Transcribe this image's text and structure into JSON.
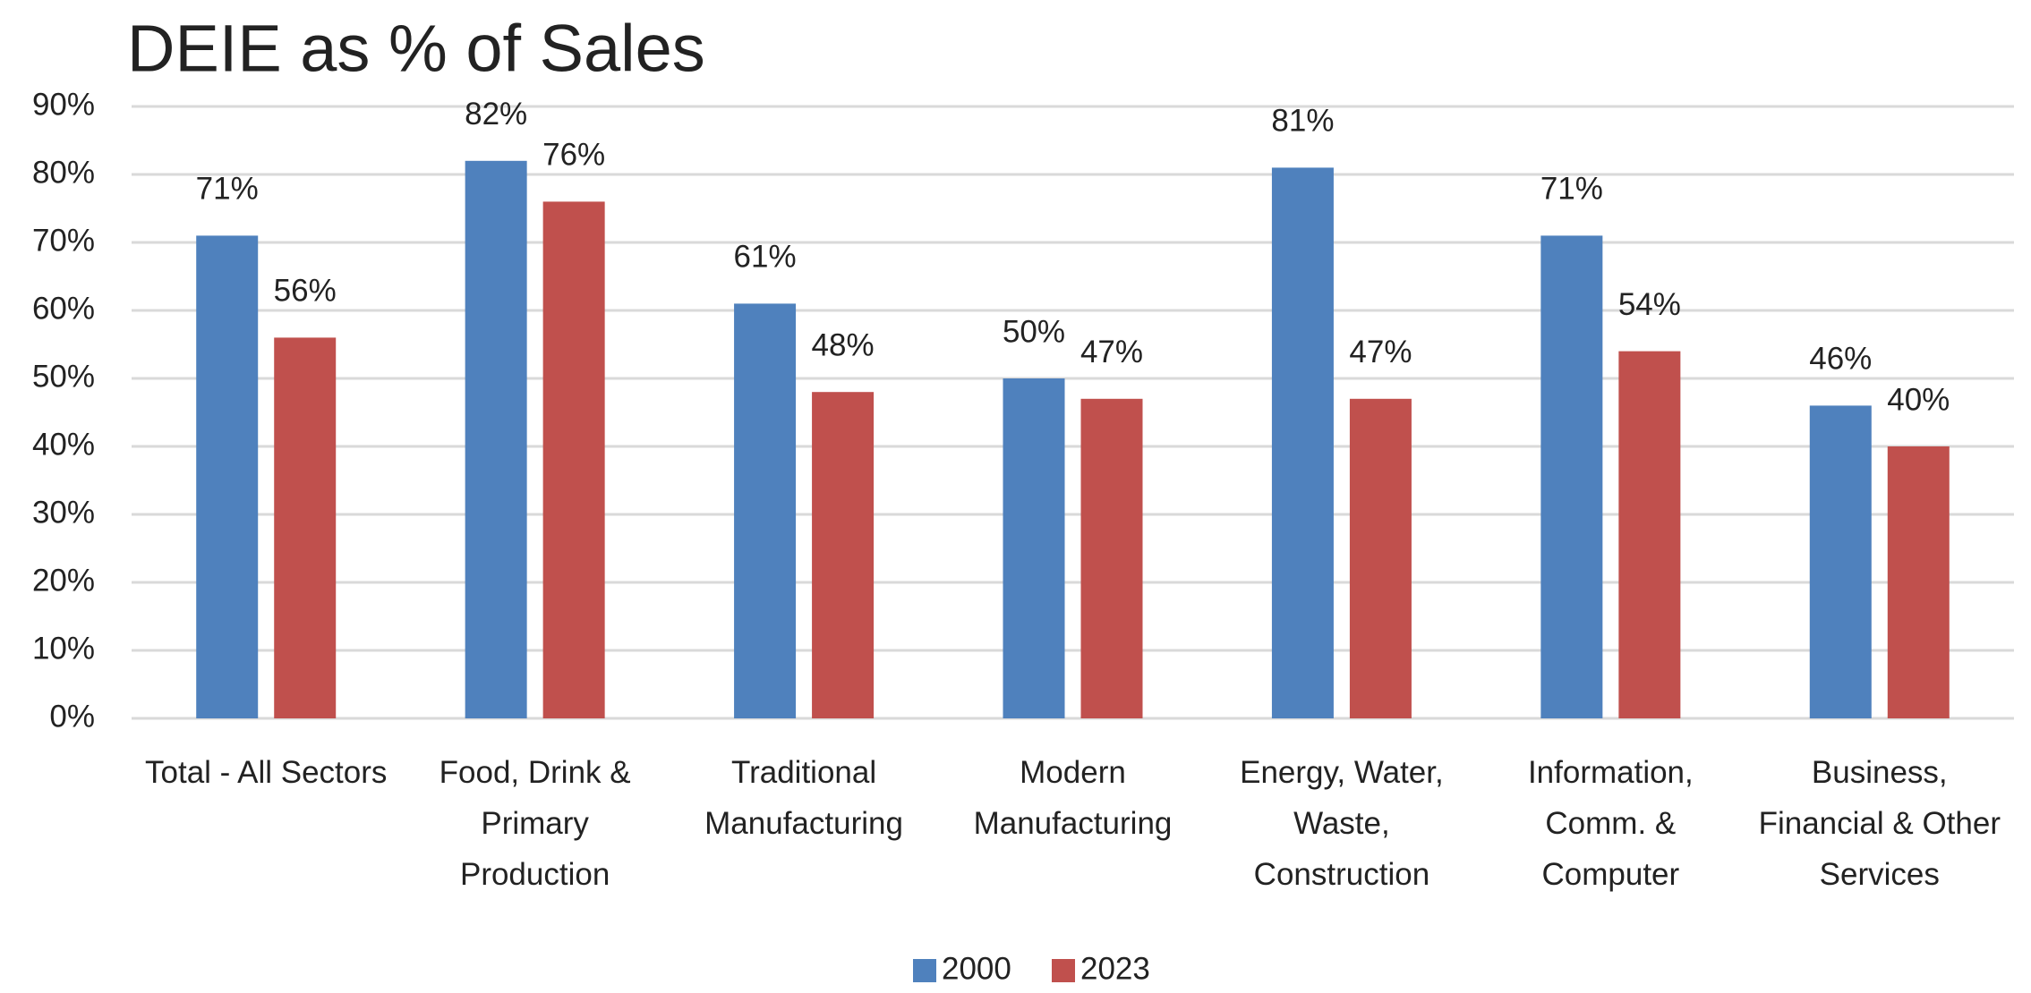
{
  "chart_data": {
    "type": "bar",
    "title": "DEIE as % of Sales",
    "categories": [
      "Total - All Sectors",
      "Food, Drink & Primary Production",
      "Traditional Manufacturing",
      "Modern Manufacturing",
      "Energy, Water, Waste, Construction",
      "Information, Comm. & Computer",
      "Business, Financial & Other Services"
    ],
    "series": [
      {
        "name": "2000",
        "color": "#4f81bd",
        "values": [
          71,
          82,
          61,
          50,
          81,
          71,
          46
        ],
        "value_labels": [
          "71%",
          "82%",
          "61%",
          "50%",
          "81%",
          "71%",
          "46%"
        ]
      },
      {
        "name": "2023",
        "color": "#c0504d",
        "values": [
          56,
          76,
          48,
          47,
          47,
          54,
          40
        ],
        "value_labels": [
          "56%",
          "76%",
          "48%",
          "47%",
          "47%",
          "54%",
          "40%"
        ]
      }
    ],
    "ylim": [
      0,
      90
    ],
    "yticks": [
      {
        "value": 0,
        "label": "0%"
      },
      {
        "value": 10,
        "label": "10%"
      },
      {
        "value": 20,
        "label": "20%"
      },
      {
        "value": 30,
        "label": "30%"
      },
      {
        "value": 40,
        "label": "40%"
      },
      {
        "value": 50,
        "label": "50%"
      },
      {
        "value": 60,
        "label": "60%"
      },
      {
        "value": 70,
        "label": "70%"
      },
      {
        "value": 80,
        "label": "80%"
      },
      {
        "value": 90,
        "label": "90%"
      }
    ],
    "grid": true,
    "legend": "bottom"
  }
}
